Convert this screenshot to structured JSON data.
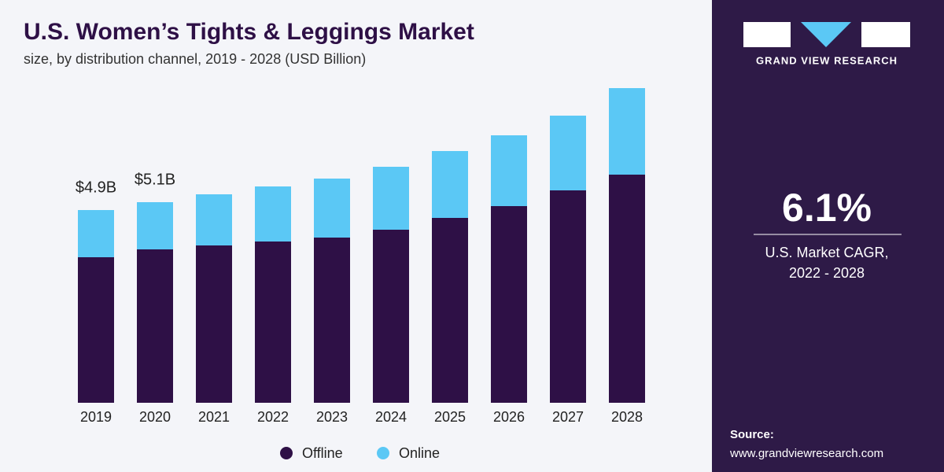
{
  "chart_data": {
    "type": "stacked_bar",
    "title": "U.S. Women’s Tights & Leggings Market",
    "subtitle": "size, by distribution channel, 2019 - 2028 (USD Billion)",
    "categories": [
      "2019",
      "2020",
      "2021",
      "2022",
      "2023",
      "2024",
      "2025",
      "2026",
      "2027",
      "2028"
    ],
    "series": [
      {
        "name": "Offline",
        "color": "#2e1046",
        "values": [
          3.7,
          3.9,
          4.0,
          4.1,
          4.2,
          4.4,
          4.7,
          5.0,
          5.4,
          5.8
        ]
      },
      {
        "name": "Online",
        "color": "#5bc8f5",
        "values": [
          1.2,
          1.2,
          1.3,
          1.4,
          1.5,
          1.6,
          1.7,
          1.8,
          1.9,
          2.2
        ]
      }
    ],
    "annotations": [
      {
        "category": "2019",
        "text": "$4.9B"
      },
      {
        "category": "2020",
        "text": "$5.1B"
      }
    ],
    "legend": "bottom"
  },
  "sidebar": {
    "brand": "GRAND VIEW RESEARCH",
    "stat": "6.1%",
    "stat_label": [
      "U.S. Market CAGR,",
      "2022 - 2028"
    ],
    "source_title": "Source:",
    "source_url": "www.grandviewresearch.com"
  }
}
